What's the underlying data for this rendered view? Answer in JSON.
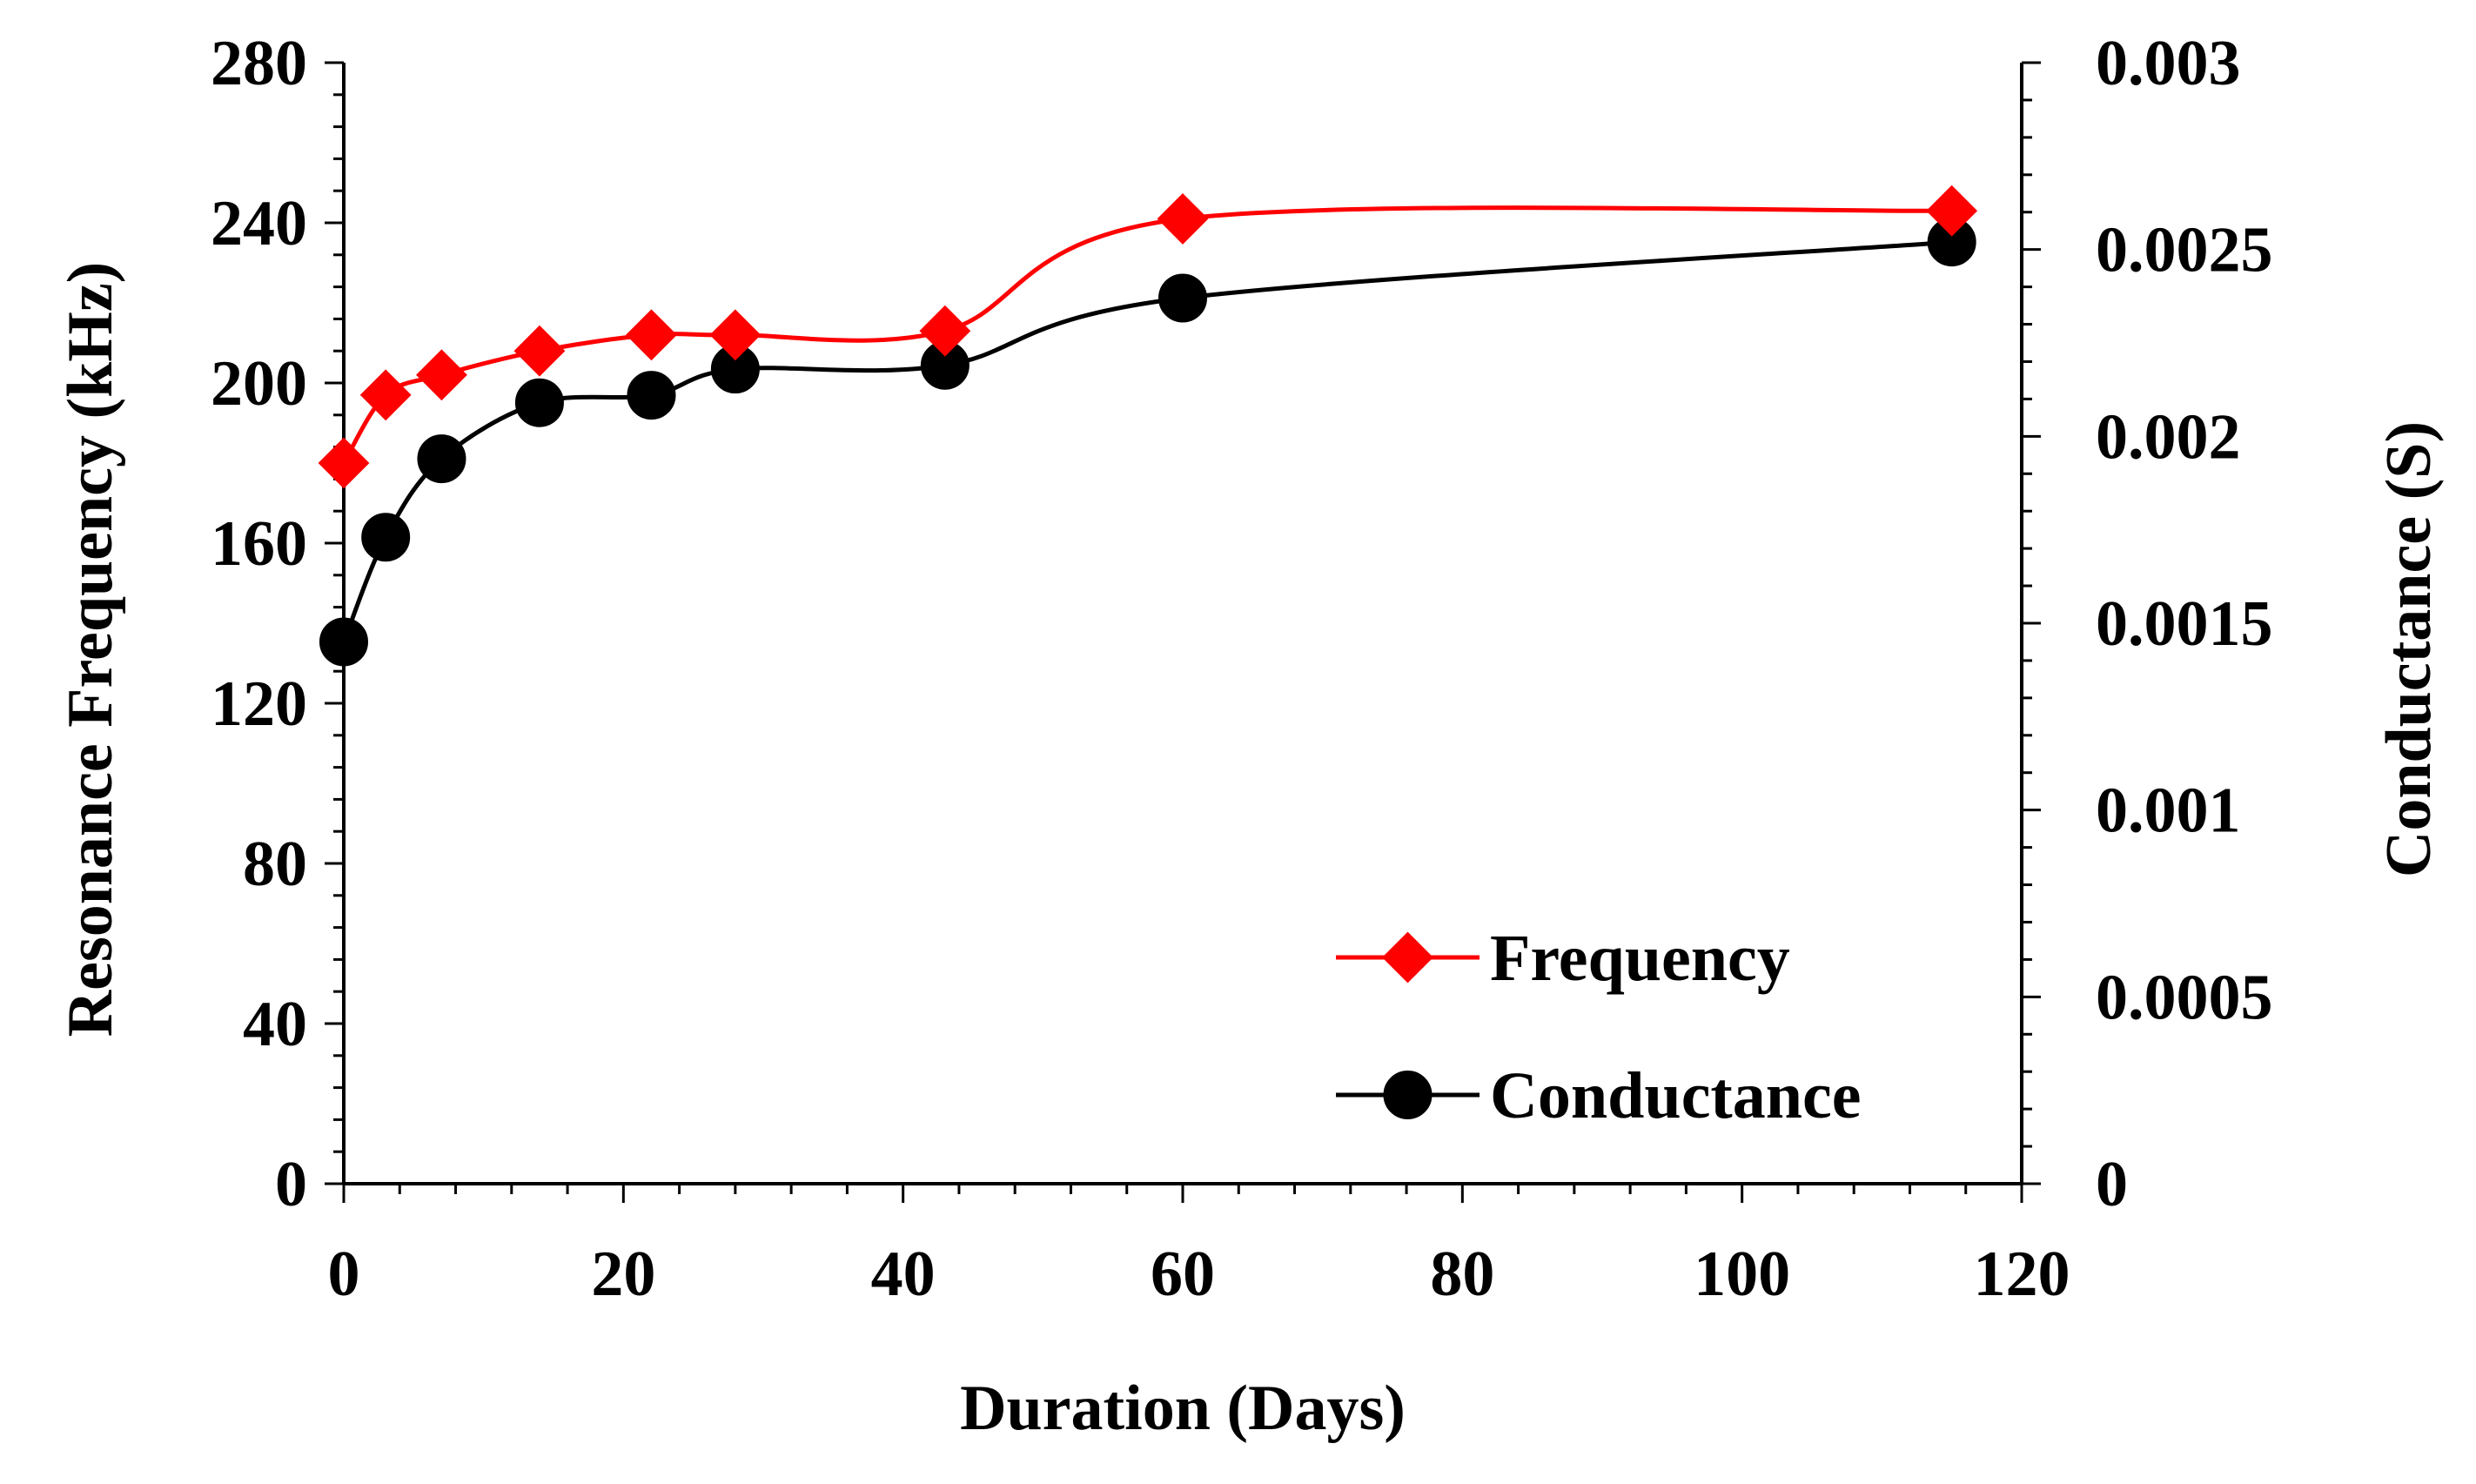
{
  "chart_data": {
    "type": "line",
    "x": [
      0,
      3,
      7,
      14,
      22,
      28,
      43,
      60,
      115
    ],
    "xlabel": "Duration (Days)",
    "ylabel": "Resonance Frequency (kHz)",
    "y2label": "Conductance (S)",
    "xlim": [
      0,
      120
    ],
    "ylim": [
      0,
      280
    ],
    "y2lim": [
      0,
      0.003
    ],
    "xticks": [
      0,
      20,
      40,
      60,
      80,
      100,
      120
    ],
    "xtick_labels": [
      "0",
      "20",
      "40",
      "60",
      "80",
      "100",
      "120"
    ],
    "yticks": [
      0,
      40,
      80,
      120,
      160,
      200,
      240,
      280
    ],
    "ytick_labels": [
      "0",
      "40",
      "80",
      "120",
      "160",
      "200",
      "240",
      "280"
    ],
    "y2ticks": [
      0,
      0.0005,
      0.001,
      0.0015,
      0.002,
      0.0025,
      0.003
    ],
    "y2tick_labels": [
      "0",
      "0.0005",
      "0.001",
      "0.0015",
      "0.002",
      "0.0025",
      "0.003"
    ],
    "legend_position": "bottom-right",
    "series": [
      {
        "name": "Frequency",
        "axis": "left",
        "color": "#ff0000",
        "marker": "diamond",
        "values": [
          180,
          197,
          202,
          208,
          212,
          212,
          213,
          241,
          243
        ]
      },
      {
        "name": "Conductance",
        "axis": "right",
        "color": "#000000",
        "marker": "circle",
        "values": [
          0.00145,
          0.00173,
          0.00194,
          0.00209,
          0.00211,
          0.00218,
          0.00219,
          0.00237,
          0.00252
        ]
      }
    ]
  }
}
